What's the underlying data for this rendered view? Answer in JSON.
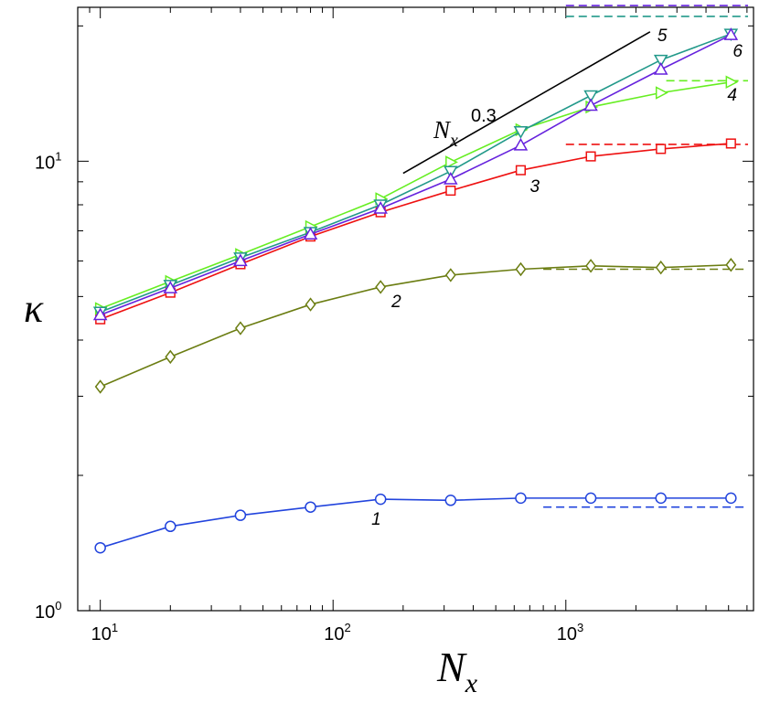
{
  "chart_data": {
    "type": "line",
    "xscale": "log",
    "yscale": "log",
    "xlim": [
      8.0,
      6400
    ],
    "ylim": [
      1.0,
      22.0
    ],
    "xticks": [
      10,
      100,
      1000
    ],
    "yticks": [
      1,
      10
    ],
    "xtick_labels": [
      {
        "base": "10",
        "exp": "1"
      },
      {
        "base": "10",
        "exp": "2"
      },
      {
        "base": "10",
        "exp": "3"
      }
    ],
    "ytick_labels": [
      {
        "base": "10",
        "exp": "0"
      },
      {
        "base": "10",
        "exp": "1"
      }
    ],
    "xlabel": {
      "symbol": "N",
      "subscript": "x"
    },
    "ylabel": "κ",
    "x": [
      10,
      20,
      40,
      80,
      160,
      320,
      640,
      1280,
      2560,
      5120
    ],
    "series": [
      {
        "name": "1",
        "color": "#2244dd",
        "marker": "circle",
        "values": [
          1.38,
          1.54,
          1.63,
          1.7,
          1.77,
          1.76,
          1.78,
          1.78,
          1.78,
          1.78
        ],
        "asymptote": 1.7,
        "asymptote_from": 800
      },
      {
        "name": "2",
        "color": "#6b7d12",
        "marker": "diamond",
        "values": [
          3.15,
          3.67,
          4.25,
          4.8,
          5.25,
          5.58,
          5.75,
          5.85,
          5.8,
          5.88
        ],
        "asymptote": 5.75,
        "asymptote_from": 800
      },
      {
        "name": "3",
        "color": "#ee1111",
        "marker": "square",
        "values": [
          4.45,
          5.1,
          5.9,
          6.8,
          7.7,
          8.6,
          9.55,
          10.25,
          10.65,
          10.95
        ],
        "asymptote": 10.9,
        "asymptote_from": 1000
      },
      {
        "name": "4",
        "color": "#66ee22",
        "marker": "triangle-right",
        "values": [
          4.7,
          5.4,
          6.2,
          7.15,
          8.25,
          9.95,
          11.75,
          13.2,
          14.2,
          15.0
        ],
        "asymptote": 15.1,
        "asymptote_from": 2700
      },
      {
        "name": "5",
        "color": "#22998a",
        "marker": "triangle-down",
        "values": [
          4.62,
          5.3,
          6.1,
          6.95,
          8.0,
          9.5,
          11.65,
          14.0,
          16.8,
          19.2
        ],
        "asymptote": 21.0,
        "asymptote_from": 1000
      },
      {
        "name": "6",
        "color": "#6622dd",
        "marker": "triangle-up",
        "values": [
          4.55,
          5.22,
          6.0,
          6.88,
          7.85,
          9.12,
          10.85,
          13.3,
          16.0,
          19.1
        ],
        "asymptote": 22.2,
        "asymptote_from": 1000
      }
    ],
    "annotation": {
      "text": "N",
      "subscript": "x",
      "exponent": "0.3",
      "line": {
        "x0": 200,
        "y0": 9.4,
        "x1": 2300,
        "y1": 19.4
      }
    }
  }
}
